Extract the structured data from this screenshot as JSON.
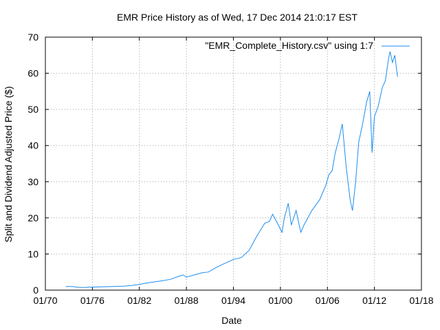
{
  "chart_data": {
    "type": "line",
    "title": "EMR Price History as of Wed, 17 Dec 2014 21:0:17 EST",
    "xlabel": "Date",
    "ylabel": "Split and Dividend Adjusted Price ($)",
    "xlim": [
      1970,
      2018
    ],
    "ylim": [
      0,
      70
    ],
    "x_ticks": [
      1970,
      1976,
      1982,
      1988,
      1994,
      2000,
      2006,
      2012,
      2018
    ],
    "x_tick_labels": [
      "01/70",
      "01/76",
      "01/82",
      "01/88",
      "01/94",
      "01/00",
      "01/06",
      "01/12",
      "01/18"
    ],
    "y_ticks": [
      0,
      10,
      20,
      30,
      40,
      50,
      60,
      70
    ],
    "y_tick_labels": [
      "0",
      "10",
      "20",
      "30",
      "40",
      "50",
      "60",
      "70"
    ],
    "grid": true,
    "legend_position": "top-right",
    "series": [
      {
        "name": "\"EMR_Complete_History.csv\" using 1:7",
        "color": "#1a8cf0",
        "x": [
          1972.6,
          1973.5,
          1974.0,
          1974.8,
          1975.5,
          1977.0,
          1978.5,
          1980.0,
          1981.0,
          1982.0,
          1983.0,
          1984.0,
          1985.0,
          1986.0,
          1987.0,
          1987.6,
          1988.0,
          1989.0,
          1990.0,
          1990.8,
          1992.0,
          1993.0,
          1994.0,
          1995.0,
          1996.0,
          1997.0,
          1998.0,
          1998.6,
          1999.0,
          1999.5,
          2000.2,
          2000.5,
          2001.0,
          2001.4,
          2002.0,
          2002.6,
          2003.0,
          2003.5,
          2004.0,
          2005.0,
          2005.8,
          2006.2,
          2006.6,
          2007.0,
          2007.5,
          2007.9,
          2008.4,
          2008.9,
          2009.2,
          2009.6,
          2010.0,
          2010.5,
          2011.0,
          2011.4,
          2011.7,
          2012.0,
          2012.5,
          2013.0,
          2013.4,
          2013.8,
          2014.0,
          2014.3,
          2014.6,
          2014.95
        ],
        "values": [
          1.0,
          1.0,
          0.8,
          0.7,
          0.8,
          0.9,
          1.0,
          1.1,
          1.3,
          1.6,
          2.0,
          2.3,
          2.6,
          3.0,
          3.8,
          4.2,
          3.6,
          4.2,
          4.8,
          5.0,
          6.5,
          7.5,
          8.5,
          9.0,
          11.0,
          15.0,
          18.5,
          19.0,
          21.0,
          19.0,
          16.0,
          20.0,
          24.0,
          18.0,
          22.0,
          16.0,
          18.0,
          20.0,
          22.0,
          25.0,
          29.0,
          32.0,
          33.0,
          38.0,
          42.0,
          46.0,
          34.0,
          25.0,
          22.0,
          30.0,
          41.0,
          46.0,
          52.0,
          55.0,
          38.0,
          48.0,
          51.0,
          56.0,
          58.0,
          64.0,
          66.0,
          63.0,
          65.0,
          59.0
        ]
      }
    ]
  }
}
